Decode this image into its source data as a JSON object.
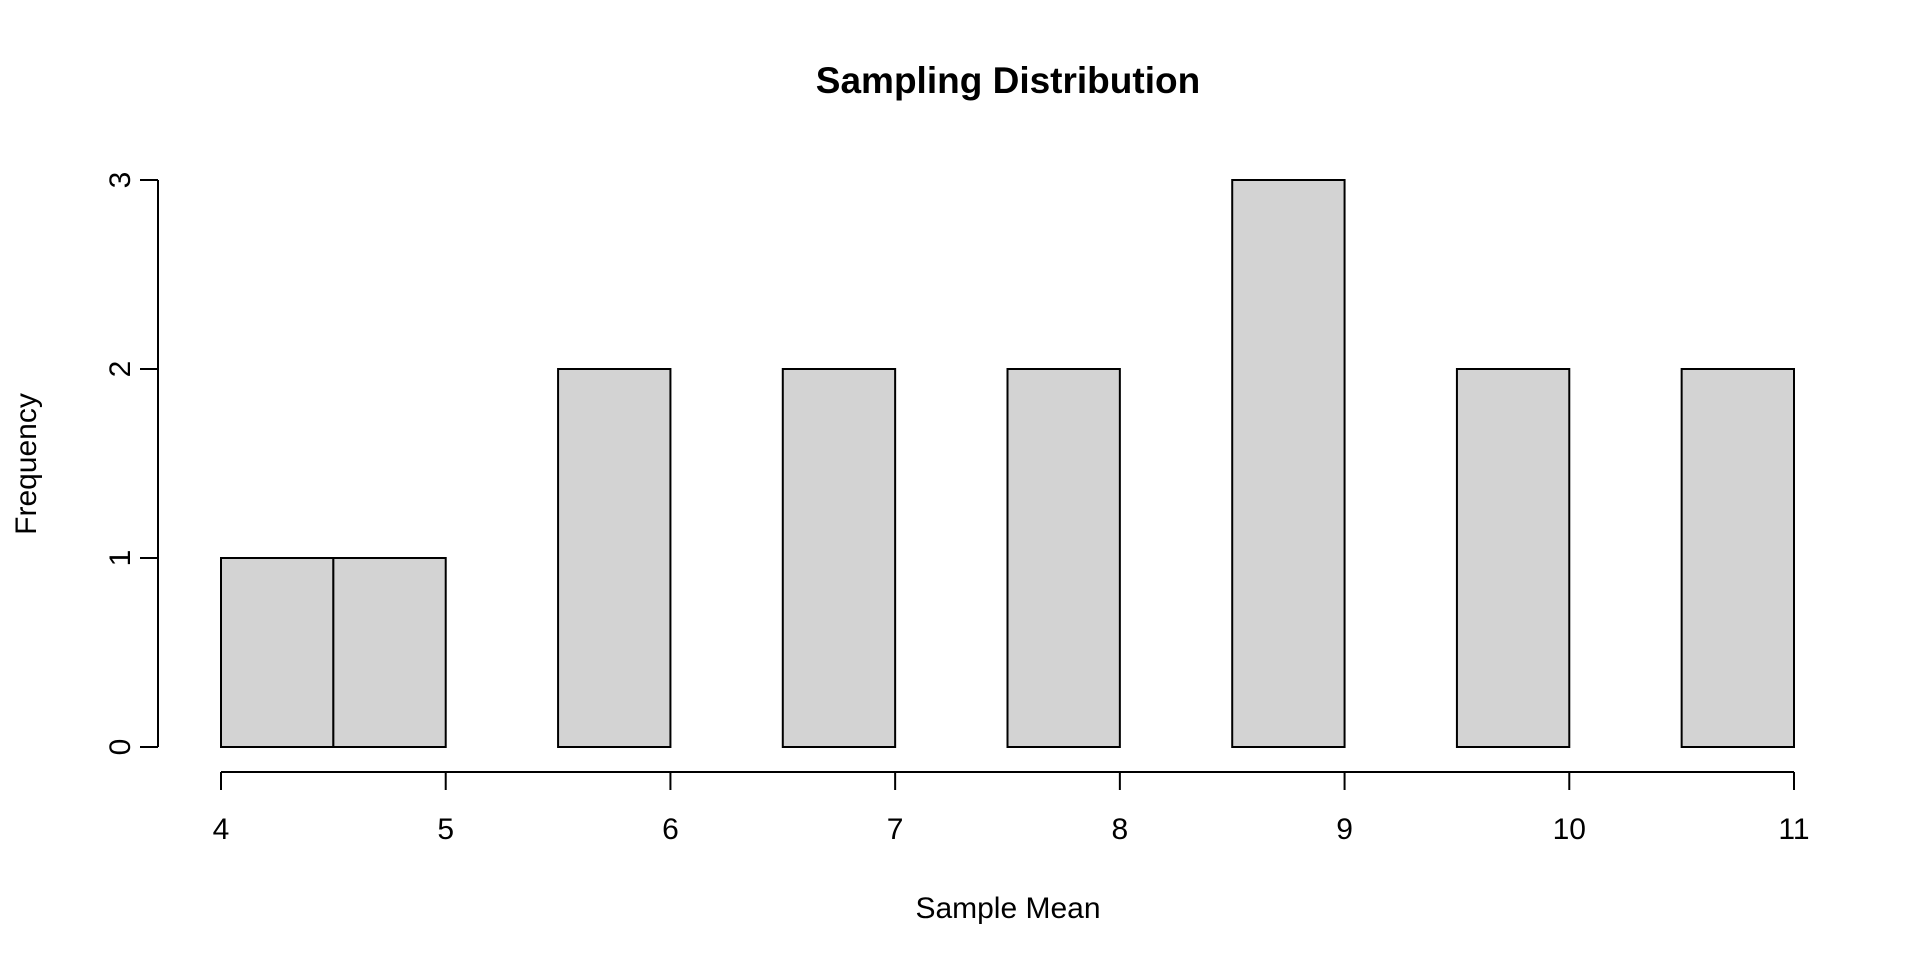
{
  "chart_data": {
    "type": "bar",
    "title": "Sampling Distribution",
    "xlabel": "Sample Mean",
    "ylabel": "Frequency",
    "bins": [
      {
        "x0": 4.0,
        "x1": 4.5,
        "count": 1
      },
      {
        "x0": 4.5,
        "x1": 5.0,
        "count": 1
      },
      {
        "x0": 5.0,
        "x1": 5.5,
        "count": 0
      },
      {
        "x0": 5.5,
        "x1": 6.0,
        "count": 2
      },
      {
        "x0": 6.0,
        "x1": 6.5,
        "count": 0
      },
      {
        "x0": 6.5,
        "x1": 7.0,
        "count": 2
      },
      {
        "x0": 7.0,
        "x1": 7.5,
        "count": 0
      },
      {
        "x0": 7.5,
        "x1": 8.0,
        "count": 2
      },
      {
        "x0": 8.0,
        "x1": 8.5,
        "count": 0
      },
      {
        "x0": 8.5,
        "x1": 9.0,
        "count": 3
      },
      {
        "x0": 9.0,
        "x1": 9.5,
        "count": 0
      },
      {
        "x0": 9.5,
        "x1": 10.0,
        "count": 2
      },
      {
        "x0": 10.0,
        "x1": 10.5,
        "count": 0
      },
      {
        "x0": 10.5,
        "x1": 11.0,
        "count": 2
      }
    ],
    "x_ticks": [
      "4",
      "5",
      "6",
      "7",
      "8",
      "9",
      "10",
      "11"
    ],
    "y_ticks": [
      "0",
      "1",
      "2",
      "3"
    ],
    "xlim": [
      4,
      11
    ],
    "ylim": [
      0,
      3
    ],
    "grid": false,
    "legend": "none",
    "bar_fill": "#d3d3d3",
    "bar_stroke": "#000000"
  }
}
